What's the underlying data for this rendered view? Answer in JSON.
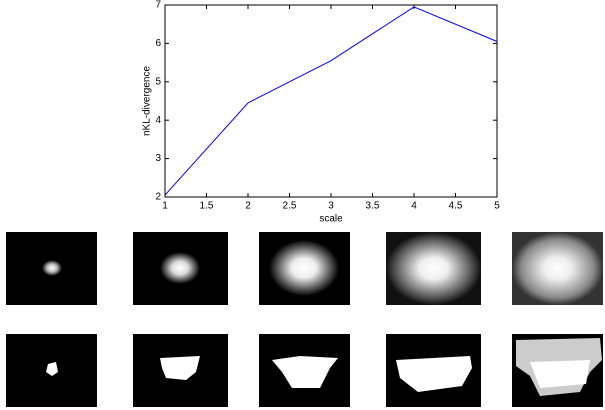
{
  "chart_data": {
    "type": "line",
    "x": [
      1,
      2,
      3,
      4,
      5
    ],
    "values": [
      2.05,
      4.45,
      5.55,
      6.95,
      6.05
    ],
    "color": "#0000ff",
    "xlim": [
      1,
      5
    ],
    "xticks": [
      1,
      1.5,
      2,
      2.5,
      3,
      3.5,
      4,
      4.5,
      5
    ],
    "ylim": [
      2,
      7
    ],
    "yticks": [
      2,
      3,
      4,
      5,
      6,
      7
    ],
    "x_label": "scale",
    "y_label": "nKL-divergence"
  }
}
